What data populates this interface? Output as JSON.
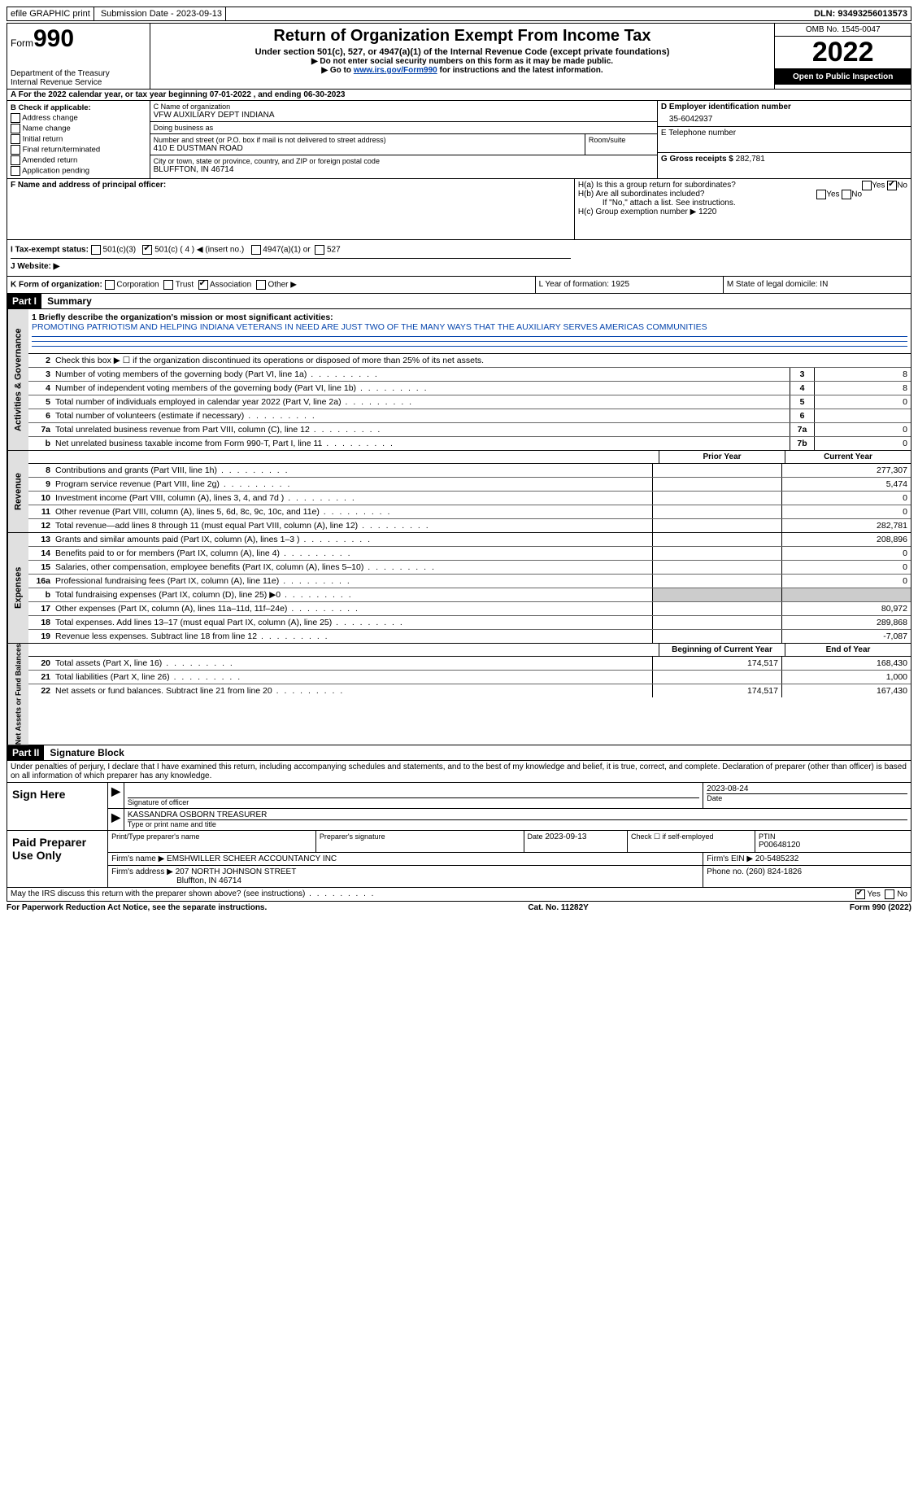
{
  "topbar": {
    "efile": "efile GRAPHIC print",
    "submission_label": "Submission Date - ",
    "submission_date": "2023-09-13",
    "dln_label": "DLN: ",
    "dln": "93493256013573"
  },
  "header": {
    "form_word": "Form",
    "form_num": "990",
    "dept": "Department of the Treasury",
    "irs": "Internal Revenue Service",
    "title": "Return of Organization Exempt From Income Tax",
    "sub": "Under section 501(c), 527, or 4947(a)(1) of the Internal Revenue Code (except private foundations)",
    "note1": "▶ Do not enter social security numbers on this form as it may be made public.",
    "note2_pre": "▶ Go to ",
    "note2_link": "www.irs.gov/Form990",
    "note2_post": " for instructions and the latest information.",
    "omb": "OMB No. 1545-0047",
    "year": "2022",
    "open": "Open to Public Inspection"
  },
  "rowA": "A For the 2022 calendar year, or tax year beginning 07-01-2022   , and ending 06-30-2023",
  "sectionB": {
    "title": "B Check if applicable:",
    "items": [
      "Address change",
      "Name change",
      "Initial return",
      "Final return/terminated",
      "Amended return",
      "Application pending"
    ]
  },
  "sectionC": {
    "name_label": "C Name of organization",
    "name": "VFW AUXILIARY DEPT INDIANA",
    "dba_label": "Doing business as",
    "street_label": "Number and street (or P.O. box if mail is not delivered to street address)",
    "street": "410 E DUSTMAN ROAD",
    "room_label": "Room/suite",
    "city_label": "City or town, state or province, country, and ZIP or foreign postal code",
    "city": "BLUFFTON, IN  46714"
  },
  "sectionDEG": {
    "d_label": "D Employer identification number",
    "d_val": "35-6042937",
    "e_label": "E Telephone number",
    "g_label": "G Gross receipts $ ",
    "g_val": "282,781"
  },
  "sectionF": {
    "label": "F  Name and address of principal officer:"
  },
  "sectionH": {
    "ha": "H(a)  Is this a group return for subordinates?",
    "hb": "H(b)  Are all subordinates included?",
    "hb_note": "If \"No,\" attach a list. See instructions.",
    "hc": "H(c)  Group exemption number ▶   1220",
    "yes": "Yes",
    "no": "No"
  },
  "sectionI": {
    "label": "I   Tax-exempt status:",
    "opts": [
      "501(c)(3)",
      "501(c) ( 4 ) ◀ (insert no.)",
      "4947(a)(1) or",
      "527"
    ]
  },
  "sectionJ": {
    "label": "J   Website: ▶"
  },
  "rowK": {
    "k": "K Form of organization:",
    "opts": [
      "Corporation",
      "Trust",
      "Association",
      "Other ▶"
    ],
    "l": "L Year of formation: 1925",
    "m": "M State of legal domicile: IN"
  },
  "part1": {
    "header": "Part I",
    "title": "Summary",
    "side_ag": "Activities & Governance",
    "side_rev": "Revenue",
    "side_exp": "Expenses",
    "side_net": "Net Assets or Fund Balances",
    "l1_label": "1   Briefly describe the organization's mission or most significant activities:",
    "l1_text": "PROMOTING PATRIOTISM AND HELPING INDIANA VETERANS IN NEED ARE JUST TWO OF THE MANY WAYS THAT THE AUXILIARY SERVES AMERICAS COMMUNITIES",
    "l2": "Check this box ▶ ☐ if the organization discontinued its operations or disposed of more than 25% of its net assets.",
    "lines_ag": [
      {
        "n": "3",
        "d": "Number of voting members of the governing body (Part VI, line 1a)",
        "b": "3",
        "v": "8"
      },
      {
        "n": "4",
        "d": "Number of independent voting members of the governing body (Part VI, line 1b)",
        "b": "4",
        "v": "8"
      },
      {
        "n": "5",
        "d": "Total number of individuals employed in calendar year 2022 (Part V, line 2a)",
        "b": "5",
        "v": "0"
      },
      {
        "n": "6",
        "d": "Total number of volunteers (estimate if necessary)",
        "b": "6",
        "v": ""
      },
      {
        "n": "7a",
        "d": "Total unrelated business revenue from Part VIII, column (C), line 12",
        "b": "7a",
        "v": "0"
      },
      {
        "n": "b",
        "d": "Net unrelated business taxable income from Form 990-T, Part I, line 11",
        "b": "7b",
        "v": "0"
      }
    ],
    "col_prior": "Prior Year",
    "col_curr": "Current Year",
    "lines_rev": [
      {
        "n": "8",
        "d": "Contributions and grants (Part VIII, line 1h)",
        "p": "",
        "c": "277,307"
      },
      {
        "n": "9",
        "d": "Program service revenue (Part VIII, line 2g)",
        "p": "",
        "c": "5,474"
      },
      {
        "n": "10",
        "d": "Investment income (Part VIII, column (A), lines 3, 4, and 7d )",
        "p": "",
        "c": "0"
      },
      {
        "n": "11",
        "d": "Other revenue (Part VIII, column (A), lines 5, 6d, 8c, 9c, 10c, and 11e)",
        "p": "",
        "c": "0"
      },
      {
        "n": "12",
        "d": "Total revenue—add lines 8 through 11 (must equal Part VIII, column (A), line 12)",
        "p": "",
        "c": "282,781"
      }
    ],
    "lines_exp": [
      {
        "n": "13",
        "d": "Grants and similar amounts paid (Part IX, column (A), lines 1–3 )",
        "p": "",
        "c": "208,896"
      },
      {
        "n": "14",
        "d": "Benefits paid to or for members (Part IX, column (A), line 4)",
        "p": "",
        "c": "0"
      },
      {
        "n": "15",
        "d": "Salaries, other compensation, employee benefits (Part IX, column (A), lines 5–10)",
        "p": "",
        "c": "0"
      },
      {
        "n": "16a",
        "d": "Professional fundraising fees (Part IX, column (A), line 11e)",
        "p": "",
        "c": "0"
      },
      {
        "n": "b",
        "d": "Total fundraising expenses (Part IX, column (D), line 25) ▶0",
        "p": "shaded",
        "c": "shaded"
      },
      {
        "n": "17",
        "d": "Other expenses (Part IX, column (A), lines 11a–11d, 11f–24e)",
        "p": "",
        "c": "80,972"
      },
      {
        "n": "18",
        "d": "Total expenses. Add lines 13–17 (must equal Part IX, column (A), line 25)",
        "p": "",
        "c": "289,868"
      },
      {
        "n": "19",
        "d": "Revenue less expenses. Subtract line 18 from line 12",
        "p": "",
        "c": "-7,087"
      }
    ],
    "col_beg": "Beginning of Current Year",
    "col_end": "End of Year",
    "lines_net": [
      {
        "n": "20",
        "d": "Total assets (Part X, line 16)",
        "p": "174,517",
        "c": "168,430"
      },
      {
        "n": "21",
        "d": "Total liabilities (Part X, line 26)",
        "p": "",
        "c": "1,000"
      },
      {
        "n": "22",
        "d": "Net assets or fund balances. Subtract line 21 from line 20",
        "p": "174,517",
        "c": "167,430"
      }
    ]
  },
  "part2": {
    "header": "Part II",
    "title": "Signature Block",
    "decl": "Under penalties of perjury, I declare that I have examined this return, including accompanying schedules and statements, and to the best of my knowledge and belief, it is true, correct, and complete. Declaration of preparer (other than officer) is based on all information of which preparer has any knowledge.",
    "sign_here": "Sign Here",
    "sig_officer": "Signature of officer",
    "sig_date": "2023-08-24",
    "date_label": "Date",
    "name_title": "KASSANDRA OSBORN  TREASURER",
    "name_title_label": "Type or print name and title",
    "paid": "Paid Preparer Use Only",
    "p_name_label": "Print/Type preparer's name",
    "p_sig_label": "Preparer's signature",
    "p_date_label": "Date",
    "p_date": "2023-09-13",
    "p_check": "Check ☐ if self-employed",
    "ptin_label": "PTIN",
    "ptin": "P00648120",
    "firm_name_label": "Firm's name    ▶ ",
    "firm_name": "EMSHWILLER SCHEER ACCOUNTANCY INC",
    "firm_ein_label": "Firm's EIN ▶ ",
    "firm_ein": "20-5485232",
    "firm_addr_label": "Firm's address ▶ ",
    "firm_addr1": "207 NORTH JOHNSON STREET",
    "firm_addr2": "Bluffton, IN  46714",
    "phone_label": "Phone no. ",
    "phone": "(260) 824-1826",
    "discuss": "May the IRS discuss this return with the preparer shown above? (see instructions)",
    "yes": "Yes",
    "no": "No"
  },
  "footer": {
    "left": "For Paperwork Reduction Act Notice, see the separate instructions.",
    "mid": "Cat. No. 11282Y",
    "right": "Form 990 (2022)"
  }
}
